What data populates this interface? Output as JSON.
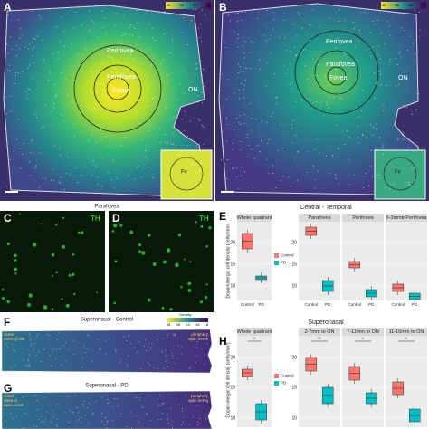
{
  "panel_a": {
    "letter": "A",
    "scale": [
      "45",
      "38",
      "23",
      "15"
    ],
    "perifovea": "Perifovea",
    "parafovea": "Parafovea",
    "fovea": "Fovea",
    "on": "ON",
    "inset": "Fv"
  },
  "panel_b": {
    "letter": "B",
    "scale": [
      "45",
      "38",
      "23",
      "15"
    ],
    "perifovea": "Perifovea",
    "parafovea": "Parafovea",
    "fovea": "Fovea",
    "on": "ON",
    "inset": "Fv"
  },
  "panel_cd": {
    "title": "Parafovea",
    "c": "C",
    "d": "D",
    "marker_c": "TH",
    "marker_d": "TH"
  },
  "panel_e": {
    "letter": "E",
    "title": "Central - Temporal",
    "y_label": "Dopaminergic cell density (cells/mm²)",
    "whole": "Whole quadrant",
    "regions": [
      "Parafovea",
      "Perifovea",
      "0-3mmtoPerifovea"
    ],
    "yticks": [
      "20",
      "15",
      "10"
    ],
    "x": [
      "Control",
      "PD"
    ],
    "legend": [
      "Control",
      "PD"
    ]
  },
  "panel_f": {
    "letter": "F",
    "title": "Superonasal - Control",
    "density": "Density",
    "scale": [
      "45",
      "38",
      "23",
      "15",
      "8"
    ],
    "left": [
      "center",
      "2mm to ON"
    ],
    "right": [
      "periphery",
      "optic nerve"
    ]
  },
  "panel_g": {
    "letter": "G",
    "title": "Superonasal - PD",
    "left": [
      "center",
      "2mm to",
      "optic nerve"
    ],
    "right": [
      "periphery",
      "optic nerve"
    ]
  },
  "panel_h": {
    "letter": "H",
    "title": "Superonasal",
    "y_label": "Dopaminergic cell density (cells/mm²)",
    "whole": "Whole quadrant",
    "regions": [
      "2-7mm to ON",
      "7-11mm to ON",
      "11-16mm to ON"
    ],
    "yticks": [
      "20",
      "15",
      "10"
    ],
    "legend": [
      "Control",
      "PD"
    ],
    "stars": [
      "**",
      "**",
      "*",
      "*"
    ]
  }
}
